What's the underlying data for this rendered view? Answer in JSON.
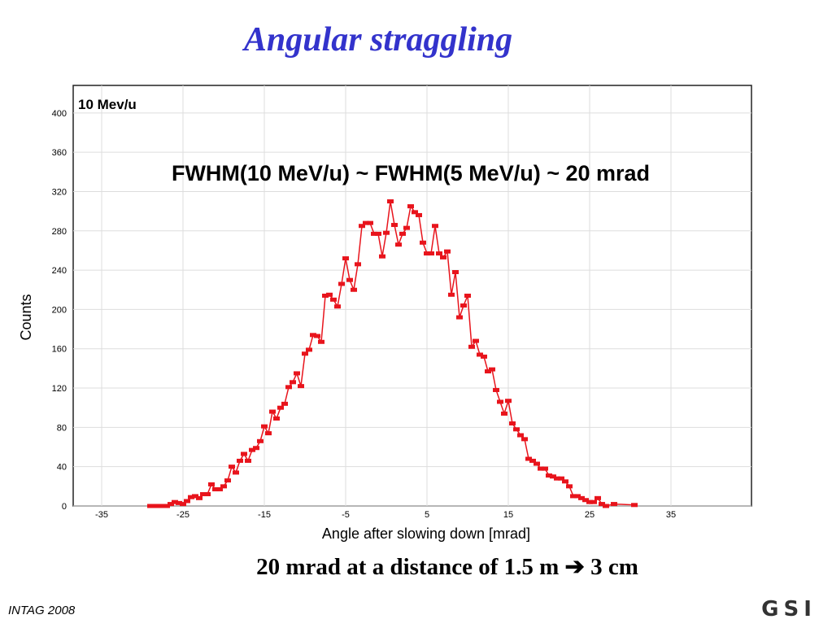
{
  "slide_title": "Angular straggling",
  "caption": "20 mrad at a distance of 1.5 m ➔ 3 cm",
  "footer": "INTAG 2008",
  "logo": "GSI",
  "chart_data": {
    "type": "line",
    "annotations": [
      "10 Mev/u",
      "FWHM(10 MeV/u) ~ FWHM(5 MeV/u) ~ 20 mrad"
    ],
    "xlabel": "Angle after slowing down [mrad]",
    "ylabel": "Counts",
    "xlim": [
      -38.5,
      44.9
    ],
    "ylim": [
      0,
      428
    ],
    "xticks": [
      -35,
      -25,
      -15,
      -5,
      5,
      15,
      25,
      35
    ],
    "yticks": [
      0,
      40,
      80,
      120,
      160,
      200,
      240,
      280,
      320,
      360,
      400
    ],
    "grid": true,
    "x": [
      -29,
      -28.5,
      -28,
      -27.5,
      -27,
      -26.5,
      -26,
      -25.5,
      -25,
      -24.5,
      -24,
      -23.5,
      -23,
      -22.5,
      -22,
      -21.5,
      -21,
      -20.5,
      -20,
      -19.5,
      -19,
      -18.5,
      -18,
      -17.5,
      -17,
      -16.5,
      -16,
      -15.5,
      -15,
      -14.5,
      -14,
      -13.5,
      -13,
      -12.5,
      -12,
      -11.5,
      -11,
      -10.5,
      -10,
      -9.5,
      -9,
      -8.5,
      -8,
      -7.5,
      -7,
      -6.5,
      -6,
      -5.5,
      -5,
      -4.5,
      -4,
      -3.5,
      -3,
      -2.5,
      -2,
      -1.5,
      -1,
      -0.5,
      0,
      0.5,
      1,
      1.5,
      2,
      2.5,
      3,
      3.5,
      4,
      4.5,
      5,
      5.5,
      6,
      6.5,
      7,
      7.5,
      8,
      8.5,
      9,
      9.5,
      10,
      10.5,
      11,
      11.5,
      12,
      12.5,
      13,
      13.5,
      14,
      14.5,
      15,
      15.5,
      16,
      16.5,
      17,
      17.5,
      18,
      18.5,
      19,
      19.5,
      20,
      20.5,
      21,
      21.5,
      22,
      22.5,
      23,
      23.5,
      24,
      24.5,
      25,
      25.5,
      26,
      26.5,
      27,
      28,
      30.5
    ],
    "series": [
      {
        "name": "Counts",
        "color": "#e8141c",
        "values": [
          0,
          0,
          0,
          0,
          0,
          2,
          4,
          3,
          2,
          5,
          9,
          10,
          8,
          12,
          12,
          22,
          17,
          17,
          20,
          26,
          40,
          34,
          46,
          53,
          46,
          57,
          59,
          66,
          81,
          74,
          96,
          89,
          100,
          104,
          121,
          126,
          135,
          122,
          155,
          159,
          174,
          173,
          167,
          214,
          215,
          210,
          203,
          226,
          252,
          230,
          220,
          246,
          285,
          288,
          288,
          277,
          277,
          254,
          278,
          310,
          286,
          266,
          277,
          283,
          305,
          299,
          296,
          268,
          257,
          257,
          285,
          257,
          253,
          259,
          215,
          238,
          192,
          204,
          214,
          162,
          168,
          154,
          152,
          137,
          139,
          118,
          106,
          94,
          107,
          84,
          78,
          72,
          68,
          48,
          46,
          43,
          38,
          38,
          31,
          30,
          28,
          28,
          25,
          20,
          10,
          10,
          8,
          6,
          4,
          4,
          8,
          2,
          0,
          2,
          1
        ]
      }
    ]
  }
}
